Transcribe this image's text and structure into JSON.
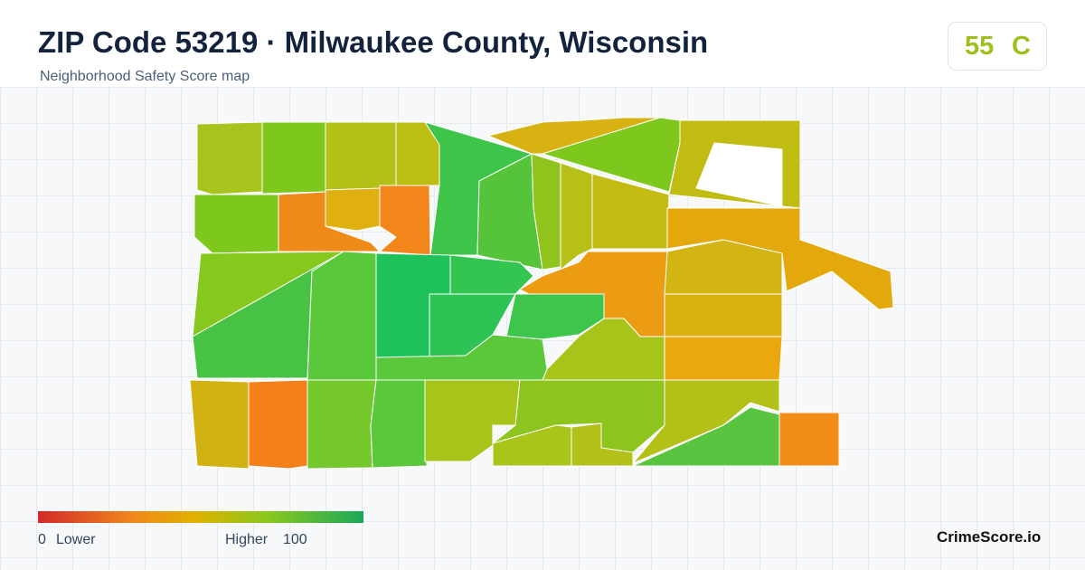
{
  "header": {
    "title": "ZIP Code 53219 · Milwaukee County, Wisconsin",
    "subtitle": "Neighborhood Safety Score map"
  },
  "badge": {
    "score": 55,
    "grade": "C"
  },
  "legend": {
    "min": 0,
    "min_label": "Lower",
    "max_label": "Higher",
    "max": 100
  },
  "footer": {
    "brand": "CrimeScore.io"
  }
}
